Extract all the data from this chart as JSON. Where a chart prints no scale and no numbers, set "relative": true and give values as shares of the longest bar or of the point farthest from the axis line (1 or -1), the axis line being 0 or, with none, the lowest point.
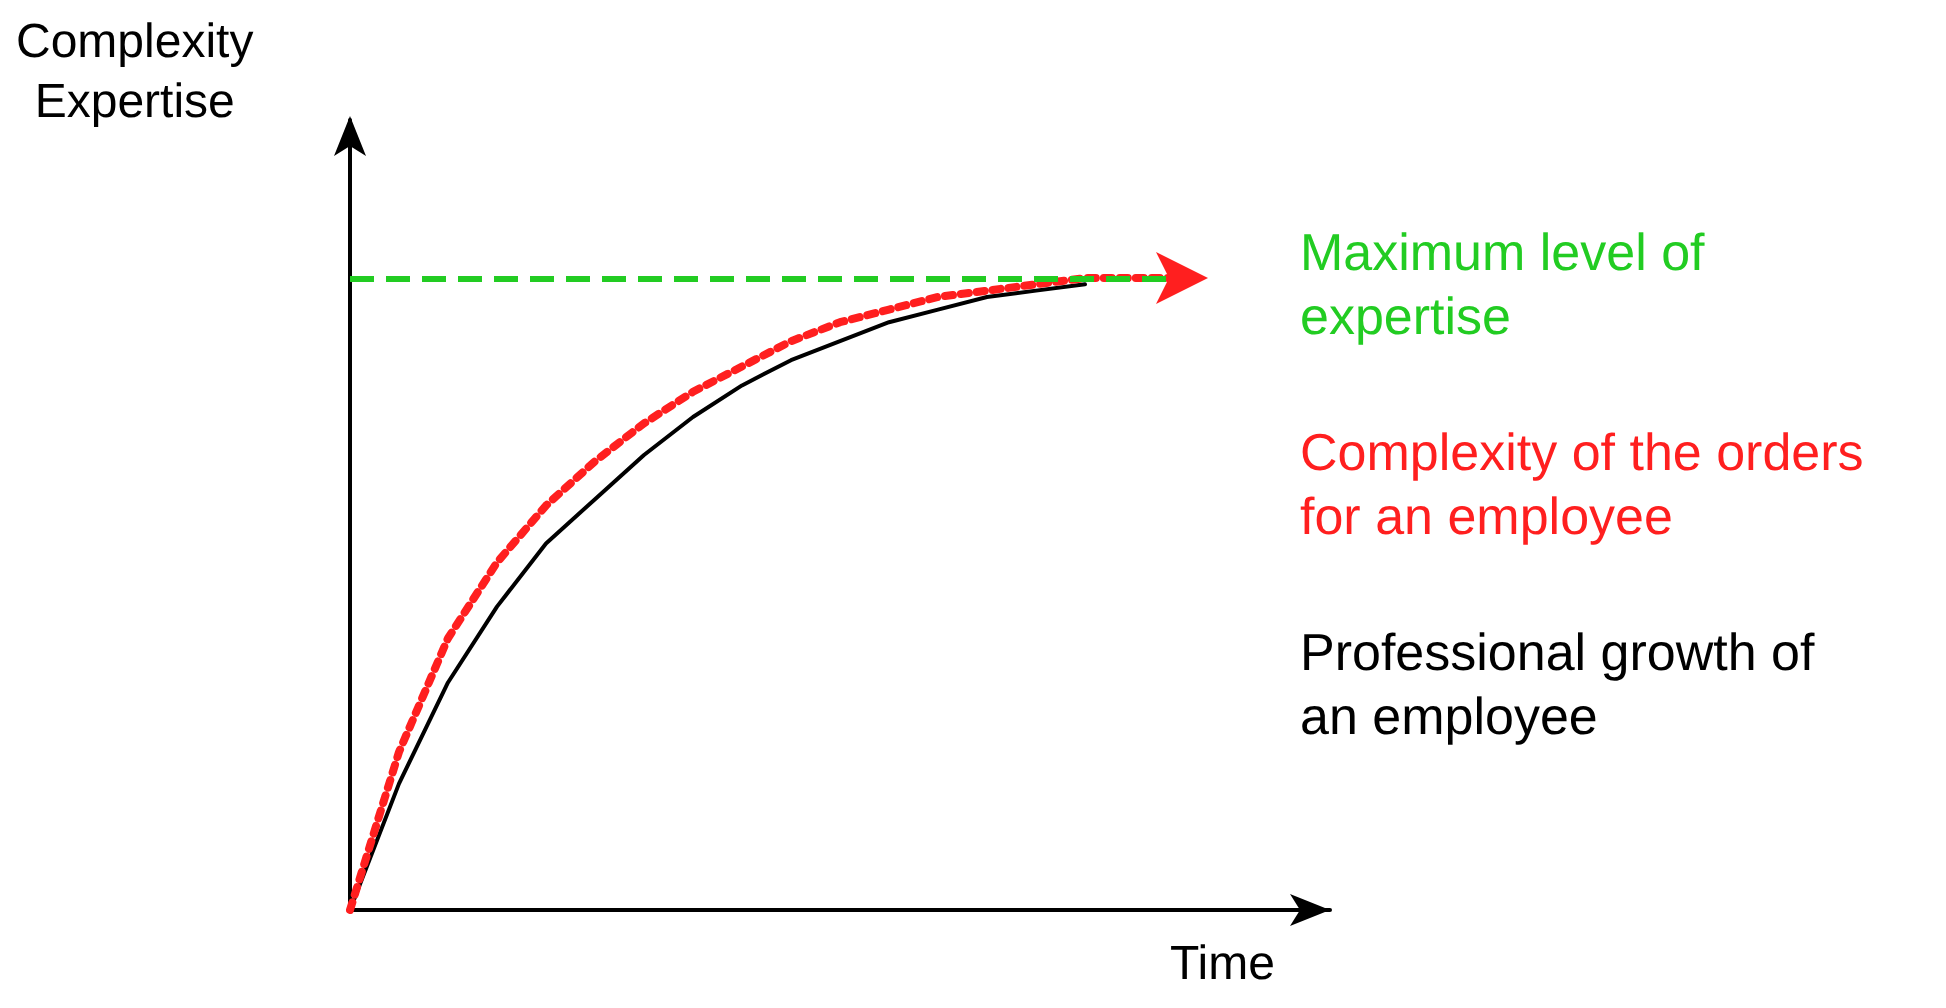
{
  "chart_data": {
    "type": "line",
    "relative": true,
    "ylabel": "Complexity\nExpertise",
    "xlabel": "Time",
    "categories": [
      null,
      null,
      null,
      null,
      null,
      null,
      null,
      null,
      null,
      null,
      null,
      null,
      null,
      null,
      null,
      null,
      null,
      null,
      null,
      null,
      null
    ],
    "grid": false,
    "marker": "none",
    "series": [
      {
        "name": "Complexity of the orders for an employee",
        "color": "#ff1f1f",
        "line_style": "dotted",
        "values": [
          0,
          0.25,
          0.43,
          0.55,
          0.64,
          0.71,
          0.77,
          0.82,
          0.86,
          0.9,
          0.93,
          0.95,
          0.97,
          0.98,
          0.99,
          1,
          1,
          1,
          null,
          null,
          null
        ]
      },
      {
        "name": "Professional growth of an employee",
        "color": "#000000",
        "line_style": "solid",
        "values": [
          0,
          0.2,
          0.36,
          0.48,
          0.58,
          0.65,
          0.72,
          0.78,
          0.83,
          0.87,
          0.9,
          0.93,
          0.95,
          0.97,
          0.98,
          0.99,
          null,
          null,
          null,
          null,
          null
        ]
      }
    ],
    "ref_lines": [
      {
        "axis": "y",
        "value": 1,
        "label": "Maximum level of expertise",
        "color": "#22cc22",
        "line_style": "dashed"
      }
    ]
  }
}
